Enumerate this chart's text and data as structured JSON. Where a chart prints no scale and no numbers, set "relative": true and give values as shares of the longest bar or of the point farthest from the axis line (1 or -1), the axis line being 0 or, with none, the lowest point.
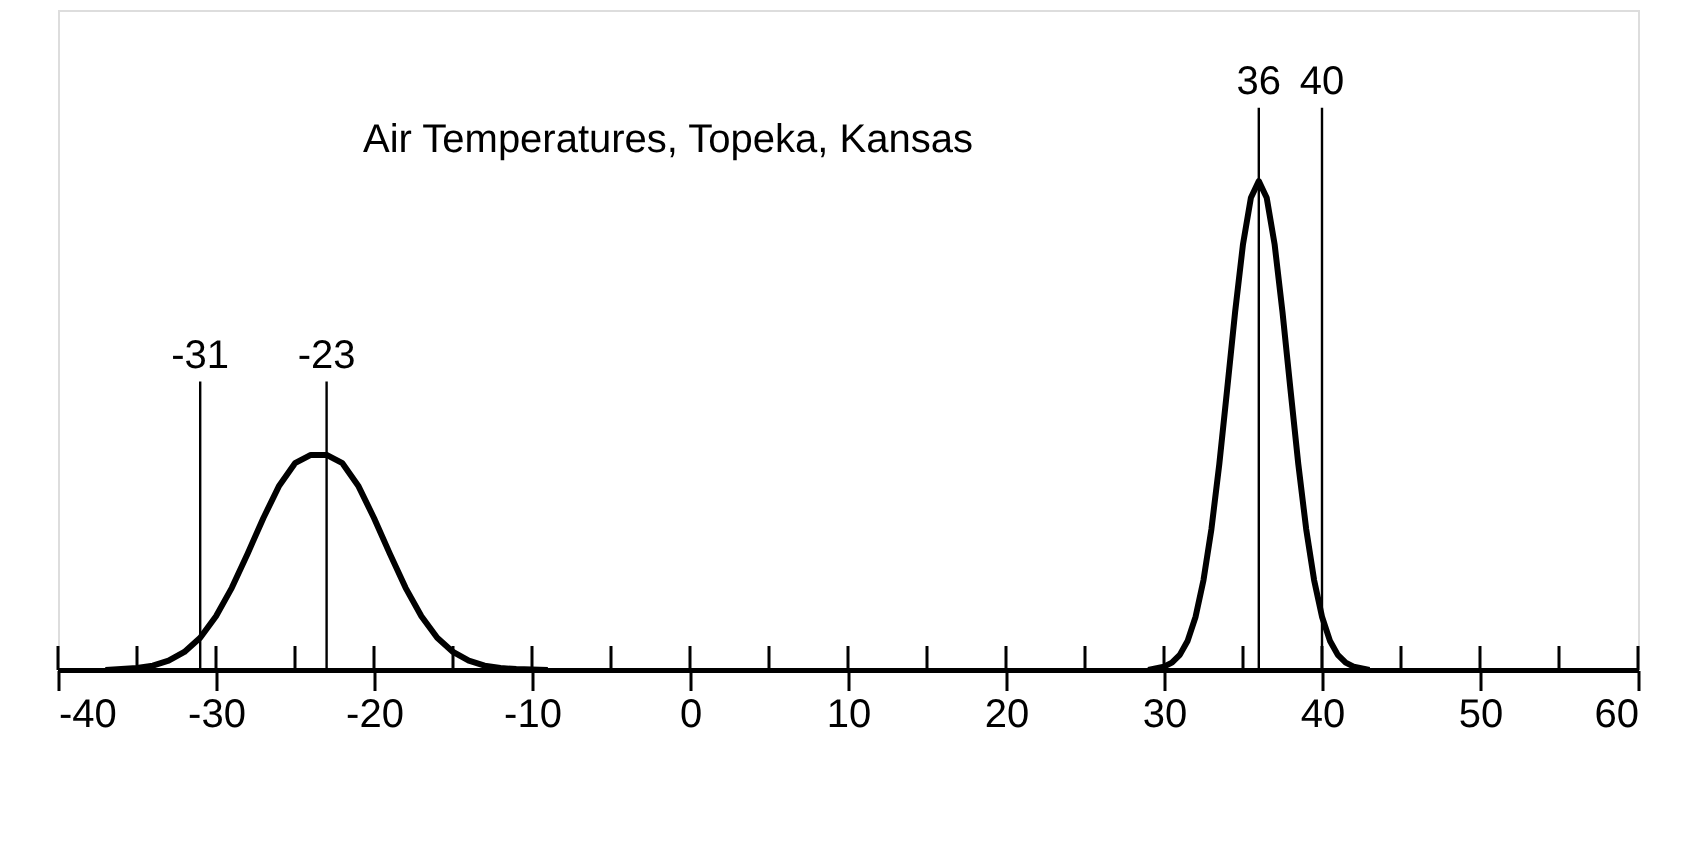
{
  "chart_data": {
    "type": "line",
    "title": "Air Temperatures, Topeka, Kansas",
    "relative": true,
    "xlim": [
      -40,
      60
    ],
    "xticks": [
      -40,
      {
        "value": -35,
        "label": null
      },
      -30,
      {
        "value": -25,
        "label": null
      },
      -20,
      {
        "value": -15,
        "label": null
      },
      -10,
      {
        "value": -5,
        "label": null
      },
      0,
      {
        "value": 5,
        "label": null
      },
      10,
      {
        "value": 15,
        "label": null
      },
      20,
      {
        "value": 25,
        "label": null
      },
      30,
      {
        "value": 35,
        "label": null
      },
      40,
      {
        "value": 45,
        "label": null
      },
      50,
      {
        "value": 55,
        "label": null
      },
      60
    ],
    "series": [
      {
        "color": "#000000",
        "x": [
          -37,
          -36,
          -35,
          -34,
          -33,
          -32,
          -31,
          -30,
          -29,
          -28,
          -27,
          -26,
          -25,
          -24,
          -23,
          -22,
          -21,
          -20,
          -19,
          -18,
          -17,
          -16,
          -15,
          -14,
          -13,
          -12,
          -11,
          -10,
          -9
        ],
        "values": [
          0,
          0.002,
          0.004,
          0.009,
          0.019,
          0.037,
          0.066,
          0.11,
          0.168,
          0.238,
          0.311,
          0.377,
          0.423,
          0.44,
          0.44,
          0.423,
          0.377,
          0.311,
          0.238,
          0.168,
          0.11,
          0.066,
          0.037,
          0.019,
          0.009,
          0.004,
          0.002,
          0.001,
          0
        ]
      },
      {
        "color": "#000000",
        "x": [
          29,
          30,
          30.5,
          31,
          31.5,
          32,
          32.5,
          33,
          33.5,
          34,
          34.5,
          35,
          35.5,
          36,
          36.5,
          37,
          37.5,
          38,
          38.5,
          39,
          39.5,
          40,
          40.5,
          41,
          41.5,
          42,
          43
        ],
        "values": [
          0,
          0.007,
          0.015,
          0.031,
          0.06,
          0.109,
          0.184,
          0.288,
          0.421,
          0.575,
          0.732,
          0.871,
          0.966,
          1,
          0.966,
          0.871,
          0.732,
          0.575,
          0.421,
          0.288,
          0.184,
          0.109,
          0.06,
          0.031,
          0.015,
          0.007,
          0
        ]
      }
    ],
    "ref_lines": [
      {
        "axis": "x",
        "value": -31,
        "label": "-31"
      },
      {
        "axis": "x",
        "value": -23,
        "label": "-23"
      },
      {
        "axis": "x",
        "value": 36,
        "label": "36"
      },
      {
        "axis": "x",
        "value": 40,
        "label": "40"
      }
    ],
    "marker": "none",
    "line_style": "solid",
    "grid": false
  }
}
